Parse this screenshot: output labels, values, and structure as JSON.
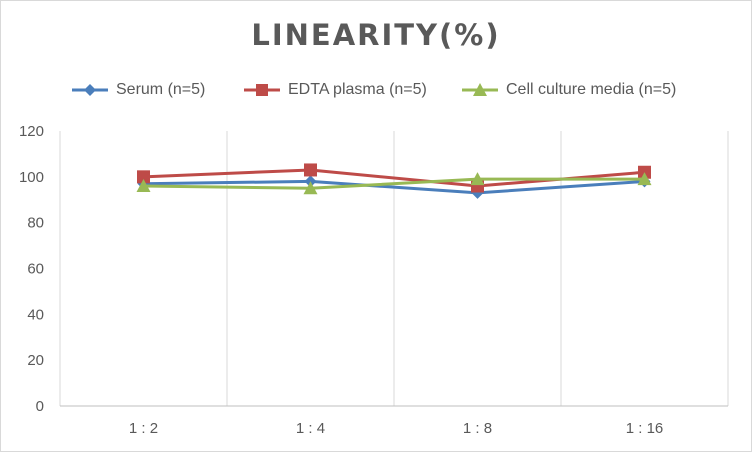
{
  "chart_data": {
    "type": "line",
    "title": "LINEARITY(%)",
    "xlabel": "",
    "ylabel": "",
    "categories": [
      "1:2",
      "1:4",
      "1:8",
      "1:16"
    ],
    "ylim": [
      0,
      120
    ],
    "yticks": [
      0,
      20,
      40,
      60,
      80,
      100,
      120
    ],
    "grid": "vertical",
    "legend_position": "top",
    "series": [
      {
        "name": "Serum (n=5)",
        "values": [
          97,
          98,
          93,
          98
        ],
        "color": "#4a7ebb",
        "marker": "diamond"
      },
      {
        "name": "EDTA plasma (n=5)",
        "values": [
          100,
          103,
          96,
          102
        ],
        "color": "#be4b48",
        "marker": "square"
      },
      {
        "name": "Cell culture media (n=5)",
        "values": [
          96,
          95,
          99,
          99
        ],
        "color": "#98b954",
        "marker": "triangle"
      }
    ]
  }
}
